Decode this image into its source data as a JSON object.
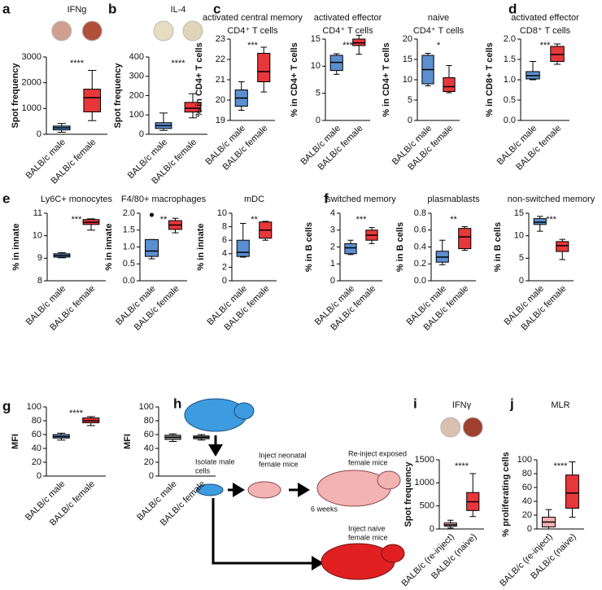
{
  "chart_data": [
    {
      "type": "box",
      "panel": "a",
      "title": [
        "IFNg"
      ],
      "ylabel": "Spot frequency",
      "wells": [
        "#cf9f8f",
        "#b0503a"
      ],
      "annotation": "****",
      "categories": [
        "BALB/c male",
        "BALB/c female"
      ],
      "ylim": [
        0,
        3000
      ],
      "yticks": [
        0,
        1000,
        2000,
        3000
      ],
      "boxes": [
        {
          "color": "#5b8fd0",
          "min": 80,
          "q1": 170,
          "median": 250,
          "q3": 320,
          "max": 420
        },
        {
          "color": "#e8373a",
          "min": 530,
          "q1": 870,
          "median": 1420,
          "q3": 1750,
          "max": 2480
        }
      ]
    },
    {
      "type": "box",
      "panel": "b",
      "title": [
        "IL-4"
      ],
      "ylabel": "Spot frequency",
      "wells": [
        "#e8dcc0",
        "#e0d4b8"
      ],
      "annotation": "****",
      "categories": [
        "BALB/c male",
        "BALB/c female"
      ],
      "ylim": [
        0,
        400
      ],
      "yticks": [
        0,
        100,
        200,
        300,
        400
      ],
      "boxes": [
        {
          "color": "#5b8fd0",
          "min": 20,
          "q1": 30,
          "median": 45,
          "q3": 60,
          "max": 110
        },
        {
          "color": "#e8373a",
          "min": 85,
          "q1": 115,
          "median": 135,
          "q3": 165,
          "max": 210
        }
      ]
    },
    {
      "type": "box",
      "panel": "c",
      "title": [
        "activated central memory",
        "CD4⁺ T cells"
      ],
      "ylabel": "% in CD4+ T cells",
      "annotation": "***",
      "categories": [
        "BALB/c male",
        "BALB/c female"
      ],
      "ylim": [
        19,
        23
      ],
      "yticks": [
        19,
        20,
        21,
        22,
        23
      ],
      "boxes": [
        {
          "color": "#5b8fd0",
          "min": 19.5,
          "q1": 19.7,
          "median": 20.1,
          "q3": 20.5,
          "max": 20.9
        },
        {
          "color": "#e8373a",
          "min": 20.4,
          "q1": 20.9,
          "median": 21.4,
          "q3": 22.3,
          "max": 22.6
        }
      ]
    },
    {
      "type": "box",
      "title": [
        "activated effector",
        "CD4⁺ T cells"
      ],
      "ylabel": "% in CD4+ T cells",
      "annotation": "***",
      "categories": [
        "BALB/c male",
        "BALB/c female"
      ],
      "ylim": [
        0,
        15
      ],
      "yticks": [
        0,
        5,
        10,
        15
      ],
      "boxes": [
        {
          "color": "#5b8fd0",
          "min": 8.5,
          "q1": 9.2,
          "median": 10.7,
          "q3": 12,
          "max": 12.3
        },
        {
          "color": "#e8373a",
          "min": 12.2,
          "q1": 13.8,
          "median": 14.3,
          "q3": 15,
          "max": 15.7
        }
      ]
    },
    {
      "type": "box",
      "title": [
        "naive",
        "CD4⁺ T cells"
      ],
      "ylabel": "% in CD4+ T cells",
      "annotation": "*",
      "categories": [
        "BALB/c male",
        "BALB/c female"
      ],
      "ylim": [
        0,
        20
      ],
      "yticks": [
        0,
        5,
        10,
        15,
        20
      ],
      "boxes": [
        {
          "color": "#5b8fd0",
          "min": 8.5,
          "q1": 9,
          "median": 12.5,
          "q3": 16,
          "max": 16.5
        },
        {
          "color": "#e8373a",
          "min": 6.8,
          "q1": 7.1,
          "median": 8.3,
          "q3": 10.5,
          "max": 13.5
        }
      ]
    },
    {
      "type": "box",
      "panel": "d",
      "title": [
        "activated effector",
        "CD8⁺ T cells"
      ],
      "ylabel": "% in CD8+ T cells",
      "annotation": "***",
      "categories": [
        "BALB/c male",
        "BALB/c female"
      ],
      "ylim": [
        0,
        2
      ],
      "yticks": [
        {
          "value": 0,
          "label": "0.0"
        },
        0.5,
        {
          "value": 1,
          "label": "1.0"
        },
        1.5,
        {
          "value": 2,
          "label": "2.0"
        }
      ],
      "boxes": [
        {
          "color": "#5b8fd0",
          "min": 1.0,
          "q1": 1.02,
          "median": 1.1,
          "q3": 1.2,
          "max": 1.45
        },
        {
          "color": "#e8373a",
          "min": 1.38,
          "q1": 1.45,
          "median": 1.62,
          "q3": 1.82,
          "max": 1.88
        }
      ]
    },
    {
      "type": "box",
      "panel": "e",
      "title": [
        "Ly6C+ monocytes"
      ],
      "ylabel": "% in innate",
      "annotation": "***",
      "categories": [
        "BALB/c male",
        "BALB/c female"
      ],
      "ylim": [
        8,
        11
      ],
      "yticks": [
        8,
        9,
        10,
        11
      ],
      "boxes": [
        {
          "color": "#5b8fd0",
          "min": 9.02,
          "q1": 9.05,
          "median": 9.12,
          "q3": 9.2,
          "max": 9.25
        },
        {
          "color": "#e8373a",
          "min": 10.25,
          "q1": 10.5,
          "median": 10.6,
          "q3": 10.72,
          "max": 10.75
        }
      ]
    },
    {
      "type": "box",
      "title": [
        "F4/80+ macrophages"
      ],
      "ylabel": "% in innate",
      "annotation": "**",
      "categories": [
        "BALB/c male",
        "BALB/c female"
      ],
      "ylim": [
        0,
        2
      ],
      "yticks": [
        {
          "value": 0,
          "label": "0.0"
        },
        0.5,
        {
          "value": 1,
          "label": "1.0"
        },
        1.5,
        {
          "value": 2,
          "label": "2.0"
        }
      ],
      "boxes": [
        {
          "color": "#5b8fd0",
          "min": 0.65,
          "q1": 0.72,
          "median": 0.88,
          "q3": 1.22,
          "max": 1.22,
          "outliers": [
            1.95
          ]
        },
        {
          "color": "#e8373a",
          "min": 1.42,
          "q1": 1.52,
          "median": 1.65,
          "q3": 1.78,
          "max": 1.85
        }
      ]
    },
    {
      "type": "box",
      "title": [
        "mDC"
      ],
      "ylabel": "% in innate",
      "annotation": "**",
      "categories": [
        "BALB/c male",
        "BALB/c female"
      ],
      "ylim": [
        0,
        10
      ],
      "yticks": [
        0,
        2,
        4,
        6,
        8,
        10
      ],
      "boxes": [
        {
          "color": "#5b8fd0",
          "min": 3.5,
          "q1": 3.6,
          "median": 4.2,
          "q3": 6,
          "max": 8.5
        },
        {
          "color": "#e8373a",
          "min": 6,
          "q1": 6.3,
          "median": 7.5,
          "q3": 8.7,
          "max": 8.8
        }
      ]
    },
    {
      "type": "box",
      "panel": "f",
      "title": [
        "switched memory"
      ],
      "ylabel": "% in B cells",
      "annotation": "***",
      "categories": [
        "BALB/c male",
        "BALB/c female"
      ],
      "ylim": [
        0,
        4
      ],
      "yticks": [
        0,
        1,
        2,
        3,
        4
      ],
      "boxes": [
        {
          "color": "#5b8fd0",
          "min": 1.55,
          "q1": 1.6,
          "median": 1.95,
          "q3": 2.2,
          "max": 2.4
        },
        {
          "color": "#e8373a",
          "min": 2.2,
          "q1": 2.4,
          "median": 2.7,
          "q3": 3,
          "max": 3.15
        }
      ]
    },
    {
      "type": "box",
      "title": [
        "plasmablasts"
      ],
      "ylabel": "% in B cells",
      "annotation": "**",
      "categories": [
        "BALB/c male",
        "BALB/c female"
      ],
      "ylim": [
        0,
        0.8
      ],
      "yticks": [
        {
          "value": 0,
          "label": "0.0"
        },
        0.2,
        0.4,
        0.6,
        0.8
      ],
      "boxes": [
        {
          "color": "#5b8fd0",
          "min": 0.19,
          "q1": 0.22,
          "median": 0.28,
          "q3": 0.35,
          "max": 0.48
        },
        {
          "color": "#e8373a",
          "min": 0.36,
          "q1": 0.38,
          "median": 0.52,
          "q3": 0.62,
          "max": 0.64
        }
      ]
    },
    {
      "type": "box",
      "title": [
        "non-switched memory"
      ],
      "ylabel": "% in B cells",
      "annotation": "***",
      "categories": [
        "BALB/c male",
        "BALB/c female"
      ],
      "ylim": [
        0,
        15
      ],
      "yticks": [
        0,
        5,
        10,
        15
      ],
      "boxes": [
        {
          "color": "#5b8fd0",
          "min": 11,
          "q1": 12.5,
          "median": 13,
          "q3": 13.8,
          "max": 14.3
        },
        {
          "color": "#e8373a",
          "min": 4.7,
          "q1": 6.5,
          "median": 7.8,
          "q3": 8.7,
          "max": 9.2
        }
      ]
    },
    {
      "type": "box",
      "panel": "g",
      "ylabel": "MFI",
      "annotation": "****",
      "categories": [
        "BALB/c male",
        "BALB/c female"
      ],
      "ylim": [
        0,
        100
      ],
      "yticks": [
        0,
        20,
        40,
        60,
        80,
        100
      ],
      "boxes": [
        {
          "color": "#5b8fd0",
          "min": 52,
          "q1": 55,
          "median": 57,
          "q3": 60,
          "max": 62
        },
        {
          "color": "#e8373a",
          "min": 73,
          "q1": 77,
          "median": 80,
          "q3": 84,
          "max": 86
        }
      ]
    },
    {
      "type": "box",
      "ylabel": "MFI",
      "categories": [
        "BALB/c male",
        "BALB/c female"
      ],
      "ylim": [
        0,
        100
      ],
      "yticks": [
        0,
        20,
        40,
        60,
        80,
        100
      ],
      "boxes": [
        {
          "color": "#9a9a9a",
          "min": 50,
          "q1": 53,
          "median": 56,
          "q3": 59,
          "max": 61
        },
        {
          "color": "#9a9a9a",
          "min": 52,
          "q1": 54,
          "median": 56,
          "q3": 58,
          "max": 60
        }
      ]
    },
    {
      "type": "box",
      "panel": "i",
      "title": [
        "IFNγ"
      ],
      "ylabel": "Spot frequency",
      "wells": [
        "#d9c0b0",
        "#a04030"
      ],
      "annotation": "****",
      "categories": [
        "BALB/c (re-inject)",
        "BALB/c (naive)"
      ],
      "ylim": [
        0,
        1500
      ],
      "yticks": [
        0,
        500,
        1000,
        1500
      ],
      "boxes": [
        {
          "color": "#f4b3b3",
          "min": 20,
          "q1": 60,
          "median": 90,
          "q3": 130,
          "max": 190
        },
        {
          "color": "#e8373a",
          "min": 270,
          "q1": 400,
          "median": 590,
          "q3": 790,
          "max": 1200
        }
      ]
    },
    {
      "type": "box",
      "panel": "j",
      "title": [
        "MLR"
      ],
      "ylabel": "% proliferating cells",
      "annotation": "****",
      "categories": [
        "BALB/c (re-inject)",
        "BALB/c (naive)"
      ],
      "ylim": [
        0,
        100
      ],
      "yticks": [
        0,
        20,
        40,
        60,
        80,
        100
      ],
      "boxes": [
        {
          "color": "#f4b3b3",
          "min": 0,
          "q1": 3,
          "median": 10,
          "q3": 17,
          "max": 28
        },
        {
          "color": "#e8373a",
          "min": 17,
          "q1": 30,
          "median": 52,
          "q3": 78,
          "max": 97
        }
      ]
    }
  ],
  "diagram": {
    "panel": "h",
    "isolate": [
      "Isolate male",
      "cells"
    ],
    "inject_neonatal": [
      "Inject neonatal",
      "female mice"
    ],
    "reinject": [
      "Re-inject exposed",
      "female mice"
    ],
    "weeks": "6 weeks",
    "inject_naive": [
      "Inject naive",
      "female mice"
    ]
  }
}
